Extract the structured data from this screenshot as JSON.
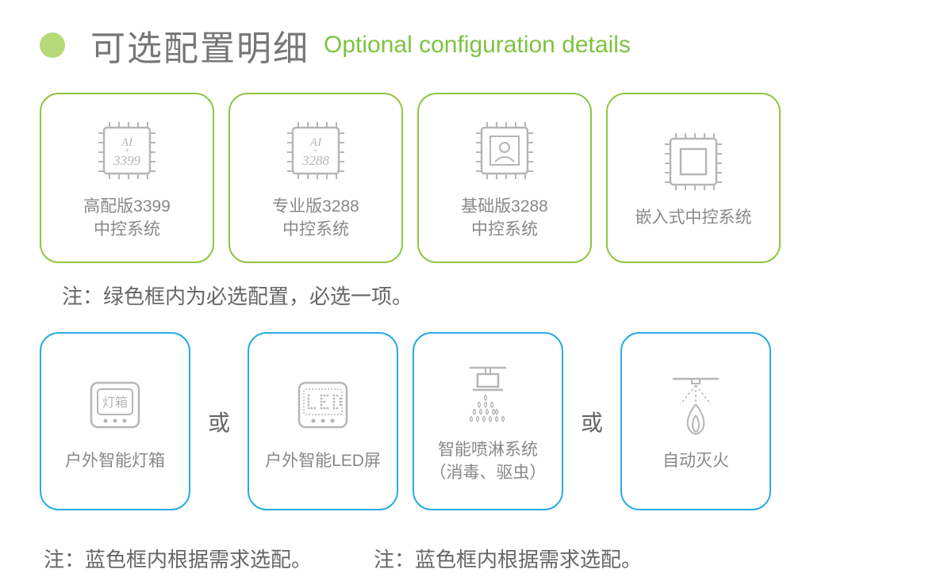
{
  "colors": {
    "green_accent": "#8fc642",
    "green_border": "#8fc642",
    "blue_border": "#29abe2",
    "text_gray": "#888888",
    "icon_stroke": "#b6b6b6",
    "dot_fill": "#b6d97a"
  },
  "header": {
    "title_cn": "可选配置明细",
    "title_en": "Optional configuration details"
  },
  "row1_cards": [
    {
      "chip_line1": "AI",
      "chip_line2": "3399",
      "label": "高配版3399\n中控系统",
      "type": "chip-text"
    },
    {
      "chip_line1": "AI",
      "chip_line2": "3288",
      "label": "专业版3288\n中控系统",
      "type": "chip-text"
    },
    {
      "label": "基础版3288\n中控系统",
      "type": "chip-user"
    },
    {
      "label": "嵌入式中控系统",
      "type": "chip-square"
    }
  ],
  "note1": "注：绿色框内为必选配置，必选一项。",
  "row2": {
    "or_text": "或",
    "cards": [
      {
        "label": "户外智能灯箱",
        "icon_text": "灯箱",
        "type": "lightbox"
      },
      {
        "label": "户外智能LED屏",
        "type": "led"
      },
      {
        "label": "智能喷淋系统\n（消毒、驱虫）",
        "type": "sprinkler"
      },
      {
        "label": "自动灭火",
        "type": "fire"
      }
    ]
  },
  "note2a": "注：蓝色框内根据需求选配。",
  "note2b": "注：蓝色框内根据需求选配。"
}
